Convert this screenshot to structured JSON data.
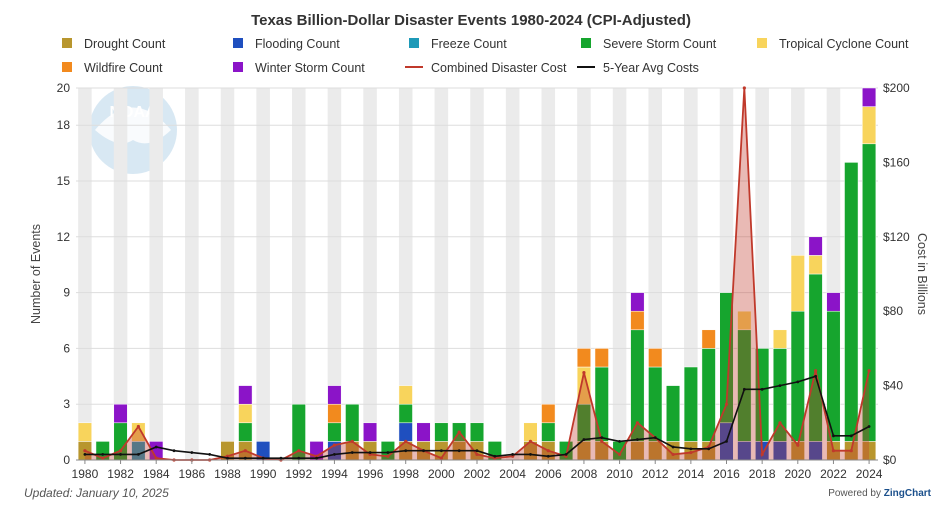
{
  "chart_data": {
    "type": "bar",
    "title": "Texas Billion-Dollar Disaster Events 1980-2024 (CPI-Adjusted)",
    "ylabel_left": "Number of Events",
    "ylabel_right": "Cost in Billions",
    "ylim_left": [
      0,
      20
    ],
    "ylim_right": [
      0,
      200
    ],
    "y_ticks_left": [
      "0",
      "3",
      "6",
      "9",
      "12",
      "15",
      "18",
      "20"
    ],
    "y_ticks_right": [
      "$0",
      "$40",
      "$80",
      "$120",
      "$160",
      "$200"
    ],
    "x": [
      1980,
      1981,
      1982,
      1983,
      1984,
      1985,
      1986,
      1987,
      1988,
      1989,
      1990,
      1991,
      1992,
      1993,
      1994,
      1995,
      1996,
      1997,
      1998,
      1999,
      2000,
      2001,
      2002,
      2003,
      2004,
      2005,
      2006,
      2007,
      2008,
      2009,
      2010,
      2011,
      2012,
      2013,
      2014,
      2015,
      2016,
      2017,
      2018,
      2019,
      2020,
      2021,
      2022,
      2023,
      2024
    ],
    "x_tick_labels": [
      "1980",
      "1982",
      "1984",
      "1986",
      "1988",
      "1990",
      "1992",
      "1994",
      "1996",
      "1998",
      "2000",
      "2002",
      "2004",
      "2006",
      "2008",
      "2010",
      "2012",
      "2014",
      "2016",
      "2018",
      "2020",
      "2022",
      "2024"
    ],
    "legend_position": "top",
    "series": [
      {
        "name": "Drought Count",
        "kind": "bar",
        "color": "#b8962e",
        "values": [
          1,
          0,
          0,
          0,
          0,
          0,
          0,
          0,
          1,
          1,
          0,
          0,
          0,
          0,
          0,
          1,
          1,
          0,
          1,
          1,
          1,
          1,
          1,
          0,
          0,
          1,
          1,
          0,
          1,
          1,
          0,
          1,
          1,
          1,
          1,
          1,
          0,
          0,
          0,
          0,
          1,
          0,
          1,
          1,
          1
        ]
      },
      {
        "name": "Flooding Count",
        "kind": "bar",
        "color": "#1f4fbf",
        "values": [
          0,
          0,
          0,
          0,
          0,
          0,
          0,
          0,
          0,
          0,
          1,
          0,
          0,
          0,
          1,
          0,
          0,
          0,
          1,
          0,
          0,
          0,
          0,
          0,
          0,
          0,
          0,
          0,
          0,
          0,
          0,
          0,
          0,
          0,
          0,
          0,
          2,
          1,
          1,
          1,
          0,
          1,
          0,
          0,
          0
        ]
      },
      {
        "name": "Freeze Count",
        "kind": "bar",
        "color": "#1e9ab8",
        "values": [
          0,
          0,
          0,
          1,
          0,
          0,
          0,
          0,
          0,
          0,
          0,
          0,
          0,
          0,
          0,
          0,
          0,
          0,
          0,
          0,
          0,
          0,
          0,
          0,
          0,
          0,
          0,
          0,
          0,
          0,
          0,
          0,
          0,
          0,
          0,
          0,
          0,
          0,
          0,
          0,
          0,
          0,
          0,
          0,
          0
        ]
      },
      {
        "name": "Severe Storm Count",
        "kind": "bar",
        "color": "#16a52e",
        "values": [
          0,
          1,
          2,
          0,
          0,
          0,
          0,
          0,
          0,
          1,
          0,
          0,
          3,
          0,
          1,
          2,
          0,
          1,
          1,
          0,
          1,
          1,
          1,
          1,
          0,
          0,
          1,
          1,
          2,
          4,
          1,
          6,
          4,
          3,
          4,
          5,
          7,
          6,
          5,
          5,
          7,
          9,
          7,
          15,
          16
        ]
      },
      {
        "name": "Tropical Cyclone Count",
        "kind": "bar",
        "color": "#f8d45c",
        "values": [
          1,
          0,
          0,
          1,
          0,
          0,
          0,
          0,
          0,
          1,
          0,
          0,
          0,
          0,
          0,
          0,
          0,
          0,
          1,
          0,
          0,
          0,
          0,
          0,
          0,
          1,
          0,
          0,
          2,
          0,
          0,
          0,
          0,
          0,
          0,
          0,
          0,
          1,
          0,
          1,
          3,
          1,
          0,
          0,
          2
        ]
      },
      {
        "name": "Wildfire Count",
        "kind": "bar",
        "color": "#f28a1e",
        "values": [
          0,
          0,
          0,
          0,
          0,
          0,
          0,
          0,
          0,
          0,
          0,
          0,
          0,
          0,
          1,
          0,
          0,
          0,
          0,
          0,
          0,
          0,
          0,
          0,
          0,
          0,
          1,
          0,
          1,
          1,
          0,
          1,
          1,
          0,
          0,
          1,
          0,
          0,
          0,
          0,
          0,
          0,
          0,
          0,
          0
        ]
      },
      {
        "name": "Winter Storm Count",
        "kind": "bar",
        "color": "#8b14c8",
        "values": [
          0,
          0,
          1,
          0,
          1,
          0,
          0,
          0,
          0,
          1,
          0,
          0,
          0,
          1,
          1,
          0,
          1,
          0,
          0,
          1,
          0,
          0,
          0,
          0,
          0,
          0,
          0,
          0,
          0,
          0,
          0,
          1,
          0,
          0,
          0,
          0,
          0,
          0,
          0,
          0,
          0,
          1,
          1,
          0,
          1
        ]
      },
      {
        "name": "Combined Disaster Cost",
        "kind": "area",
        "color": "#c0392b",
        "values": [
          5,
          1,
          5,
          18,
          1,
          0,
          0,
          0,
          2,
          5,
          1,
          0,
          5,
          2,
          8,
          10,
          3,
          2,
          10,
          5,
          1,
          15,
          3,
          1,
          2,
          10,
          5,
          2,
          47,
          10,
          3,
          20,
          12,
          3,
          4,
          7,
          30,
          200,
          3,
          20,
          8,
          48,
          5,
          5,
          48
        ]
      },
      {
        "name": "5-Year Avg Costs",
        "kind": "line",
        "color": "#111111",
        "values": [
          3,
          3,
          3,
          3,
          7,
          5,
          4,
          3,
          1,
          1,
          1,
          1,
          1,
          1,
          3,
          4,
          4,
          4,
          5,
          5,
          5,
          5,
          5,
          2,
          3,
          3,
          2,
          3,
          11,
          12,
          10,
          11,
          12,
          7,
          6,
          6,
          10,
          38,
          38,
          40,
          42,
          45,
          13,
          13,
          18
        ]
      }
    ]
  },
  "footer": {
    "updated": "Updated: January 10, 2025",
    "powered_prefix": "Powered by ",
    "powered_brand": "ZingChart"
  },
  "watermark_text": "NOAA"
}
